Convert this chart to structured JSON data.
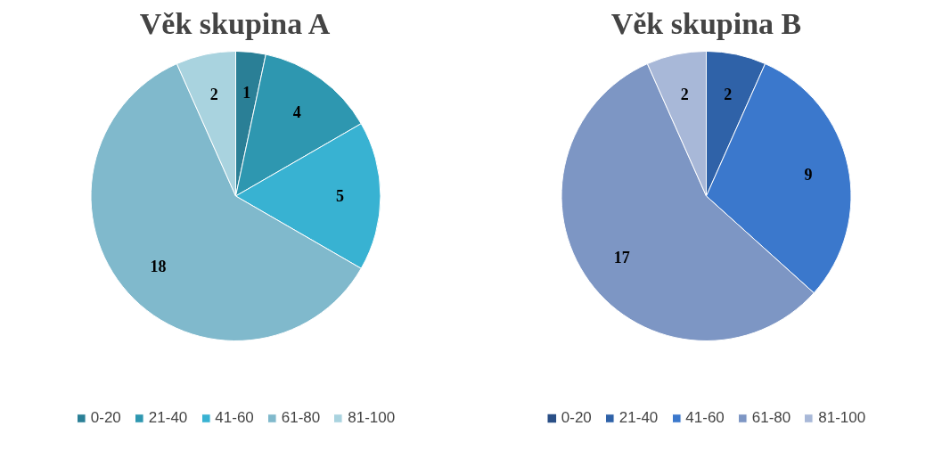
{
  "chart_data": [
    {
      "type": "pie",
      "title": "Věk skupina A",
      "categories": [
        "0-20",
        "21-40",
        "41-60",
        "61-80",
        "81-100"
      ],
      "values": [
        1,
        4,
        5,
        18,
        2
      ],
      "value_labels": [
        "1",
        "4",
        "5",
        "18",
        "2"
      ],
      "colors": [
        "#2a7f96",
        "#2e97b0",
        "#38b2d2",
        "#80b9cc",
        "#a9d3df"
      ],
      "legend": "bottom"
    },
    {
      "type": "pie",
      "title": "Věk skupina B",
      "categories": [
        "0-20",
        "21-40",
        "41-60",
        "61-80",
        "81-100"
      ],
      "values": [
        0,
        2,
        9,
        17,
        2
      ],
      "value_labels": [
        null,
        "2",
        "9",
        "17",
        "2"
      ],
      "colors": [
        "#2a4f86",
        "#2f62a8",
        "#3b78cc",
        "#7d96c4",
        "#a8b8d8"
      ],
      "legend": "bottom"
    }
  ]
}
